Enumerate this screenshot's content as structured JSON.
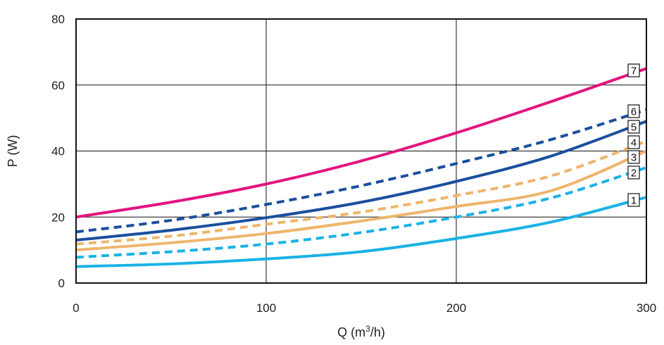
{
  "chart_data": {
    "type": "line",
    "xlabel": "Q (m³/h)",
    "ylabel": "P (W)",
    "xlim": [
      0,
      300
    ],
    "ylim": [
      0,
      80
    ],
    "xticks": [
      "0",
      "100",
      "200",
      "300"
    ],
    "yticks": [
      "0",
      "20",
      "40",
      "60",
      "80"
    ],
    "grid": true,
    "series": [
      {
        "name": "1",
        "style": "solid",
        "color": "#1ab2e6",
        "x": [
          0,
          50,
          100,
          150,
          200,
          250,
          300
        ],
        "y": [
          5,
          5.8,
          7.3,
          9.5,
          13.5,
          18.5,
          26
        ]
      },
      {
        "name": "2",
        "style": "dashed",
        "color": "#1ab2e6",
        "x": [
          0,
          50,
          100,
          150,
          200,
          250,
          300
        ],
        "y": [
          7.8,
          9.5,
          11.8,
          15.3,
          20,
          25.8,
          35
        ]
      },
      {
        "name": "3",
        "style": "solid",
        "color": "#eeb56c",
        "x": [
          0,
          50,
          100,
          150,
          200,
          250,
          300
        ],
        "y": [
          10,
          12.2,
          15,
          18.8,
          23.2,
          28,
          40
        ]
      },
      {
        "name": "4",
        "style": "dashed",
        "color": "#eeb56c",
        "x": [
          0,
          50,
          100,
          150,
          200,
          250,
          300
        ],
        "y": [
          11.8,
          14.2,
          17.8,
          21.5,
          26.5,
          32.5,
          43
        ]
      },
      {
        "name": "5",
        "style": "solid",
        "color": "#1b4f9e",
        "x": [
          0,
          50,
          100,
          150,
          200,
          250,
          300
        ],
        "y": [
          13,
          16,
          19.8,
          24.5,
          30.8,
          38.5,
          49
        ]
      },
      {
        "name": "6",
        "style": "dashed",
        "color": "#1b4f9e",
        "x": [
          0,
          50,
          100,
          150,
          200,
          250,
          300
        ],
        "y": [
          15.5,
          19,
          23.8,
          29.5,
          36.2,
          43.5,
          52.5
        ]
      },
      {
        "name": "7",
        "style": "solid",
        "color": "#e3147f",
        "x": [
          0,
          50,
          100,
          150,
          200,
          250,
          300
        ],
        "y": [
          20,
          24.5,
          30,
          37,
          45.5,
          55,
          65
        ]
      }
    ]
  }
}
